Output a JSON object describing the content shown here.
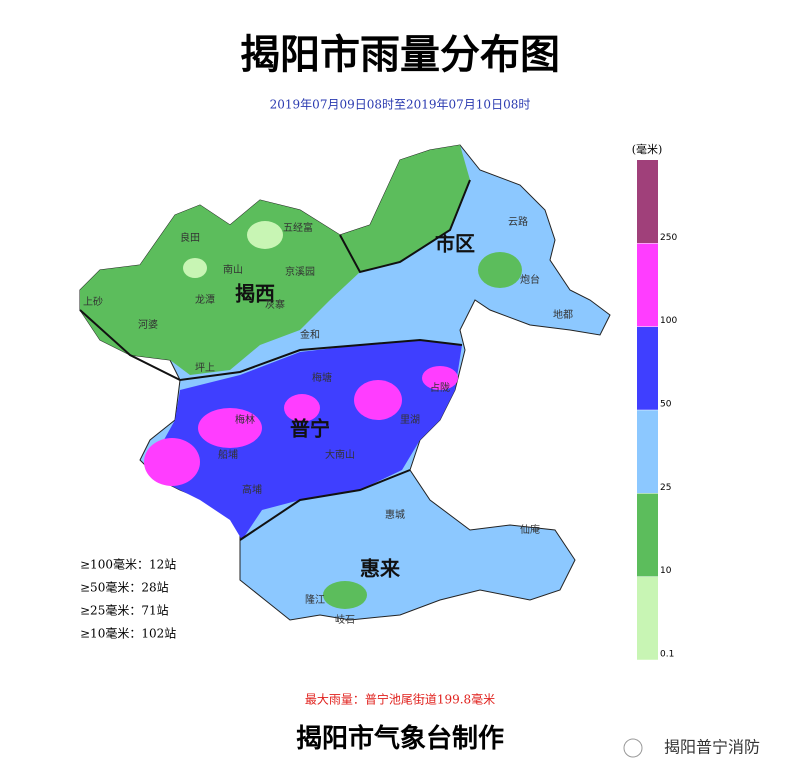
{
  "header": {
    "title": "揭阳市雨量分布图",
    "subtitle": "2019年07月09日08时至2019年07月10日08时"
  },
  "legend": {
    "unit": "(毫米)",
    "ticks": [
      0.1,
      10,
      25,
      50,
      100,
      250
    ],
    "colors": [
      "#c8f5b4",
      "#5cbd5c",
      "#8cc8ff",
      "#3f3fff",
      "#ff3dff",
      "#a0407a"
    ]
  },
  "regions": [
    {
      "label": "揭西"
    },
    {
      "label": "市区"
    },
    {
      "label": "普宁"
    },
    {
      "label": "惠来"
    }
  ],
  "towns": [
    "良田",
    "五经富",
    "南山",
    "京溪园",
    "龙潭",
    "上砂",
    "河婆",
    "坪上",
    "灰寨",
    "金和",
    "梅林",
    "船埔",
    "高埔",
    "大南山",
    "里湖",
    "惠城",
    "仙庵",
    "隆江",
    "岐石",
    "地都",
    "炮台",
    "云路",
    "占陇",
    "梅塘"
  ],
  "stats": [
    "≥100毫米：12站",
    "≥50毫米：28站",
    "≥25毫米：71站",
    "≥10毫米：102站"
  ],
  "max_rain": "最大雨量：普宁池尾街道199.8毫米",
  "footer": "揭阳市气象台制作",
  "watermark": "揭阳普宁消防"
}
